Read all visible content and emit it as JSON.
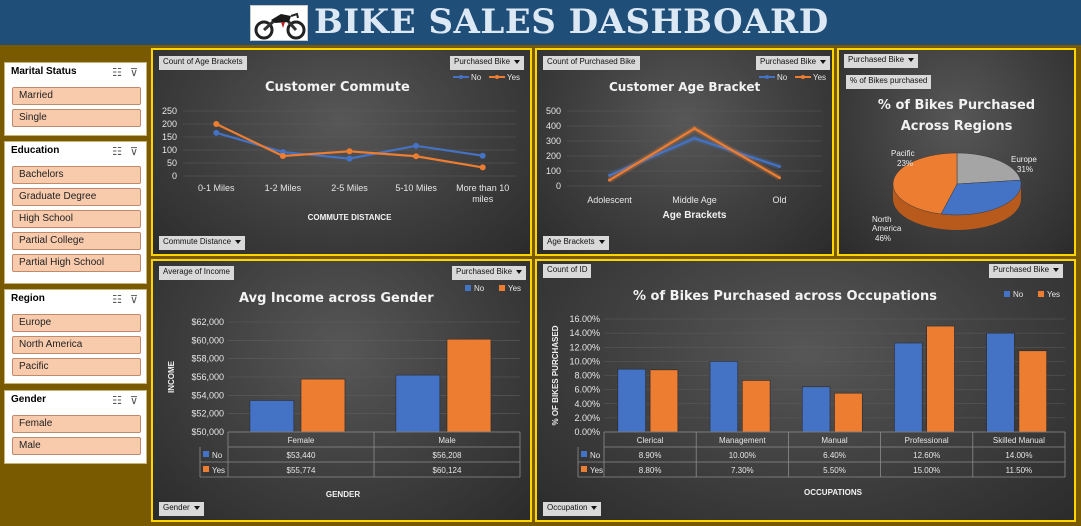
{
  "header": {
    "title": "BIKE SALES DASHBOARD"
  },
  "slicers": [
    {
      "title": "Marital Status",
      "items": [
        "Married",
        "Single"
      ]
    },
    {
      "title": "Education",
      "items": [
        "Bachelors",
        "Graduate Degree",
        "High School",
        "Partial College",
        "Partial High School"
      ]
    },
    {
      "title": "Region",
      "items": [
        "Europe",
        "North America",
        "Pacific"
      ]
    },
    {
      "title": "Gender",
      "items": [
        "Female",
        "Male"
      ]
    }
  ],
  "field_buttons": {
    "commute_value": "Count of Age Brackets",
    "commute_series": "Purchased Bike",
    "commute_axis": "Commute Distance",
    "age_value": "Count of Purchased Bike",
    "age_series": "Purchased Bike",
    "age_axis": "Age Brackets",
    "region_filter": "Purchased Bike",
    "region_value": "% of Bikes purchased",
    "income_value": "Average of Income",
    "income_series": "Purchased Bike",
    "income_axis": "Gender",
    "occ_value": "Count of ID",
    "occ_series": "Purchased Bike",
    "occ_axis": "Occupation"
  },
  "colors": {
    "no": "#4472c4",
    "yes": "#ed7d31",
    "pacific": "#a5a5a5",
    "panel_border": "#ffd500",
    "slicer_item": "#f8cbad"
  },
  "chart_data": [
    {
      "id": "commute",
      "type": "line",
      "title": "Customer Commute",
      "xlabel": "COMMUTE DISTANCE",
      "categories": [
        "0-1 Miles",
        "1-2 Miles",
        "2-5 Miles",
        "5-10 Miles",
        "More than 10 miles"
      ],
      "ylim": [
        0,
        250
      ],
      "yticks": [
        0,
        50,
        100,
        150,
        200,
        250
      ],
      "series": [
        {
          "name": "No",
          "values": [
            166,
            92,
            67,
            116,
            78
          ]
        },
        {
          "name": "Yes",
          "values": [
            200,
            77,
            95,
            76,
            33
          ]
        }
      ],
      "legend": "top-right"
    },
    {
      "id": "age",
      "type": "line",
      "title": "Customer Age Bracket",
      "xlabel": "Age Brackets",
      "categories": [
        "Adolescent",
        "Middle Age",
        "Old"
      ],
      "ylim": [
        0,
        500
      ],
      "yticks": [
        0,
        100,
        200,
        300,
        400,
        500
      ],
      "series": [
        {
          "name": "No",
          "values": [
            71,
            318,
            130
          ]
        },
        {
          "name": "Yes",
          "values": [
            39,
            383,
            55
          ]
        }
      ],
      "legend": "top-right"
    },
    {
      "id": "region",
      "type": "pie",
      "title": "% of Bikes Purchased Across Regions",
      "slices": [
        {
          "label": "Europe",
          "percent": "31%",
          "value": 31
        },
        {
          "label": "North America",
          "percent": "46%",
          "value": 46
        },
        {
          "label": "Pacific",
          "percent": "23%",
          "value": 23
        }
      ]
    },
    {
      "id": "income",
      "type": "bar",
      "title": "Avg Income across Gender",
      "xlabel": "GENDER",
      "ylabel": "INCOME",
      "categories": [
        "Female",
        "Male"
      ],
      "ylim": [
        50000,
        62000
      ],
      "yticks": [
        "$50,000",
        "$52,000",
        "$54,000",
        "$56,000",
        "$58,000",
        "$60,000",
        "$62,000"
      ],
      "series": [
        {
          "name": "No",
          "values": [
            53440,
            56208
          ],
          "labels": [
            "$53,440",
            "$56,208"
          ]
        },
        {
          "name": "Yes",
          "values": [
            55774,
            60124
          ],
          "labels": [
            "$55,774",
            "$60,124"
          ]
        }
      ],
      "legend": "top-right"
    },
    {
      "id": "occupation",
      "type": "bar",
      "title": "% of Bikes Purchased across Occupations",
      "xlabel": "OCCUPATIONS",
      "ylabel": "% OF BIKES PURCHASED",
      "categories": [
        "Clerical",
        "Management",
        "Manual",
        "Professional",
        "Skilled Manual"
      ],
      "ylim": [
        0,
        16
      ],
      "yticks": [
        "0.00%",
        "2.00%",
        "4.00%",
        "6.00%",
        "8.00%",
        "10.00%",
        "12.00%",
        "14.00%",
        "16.00%"
      ],
      "series": [
        {
          "name": "No",
          "values": [
            8.9,
            10.0,
            6.4,
            12.6,
            14.0
          ],
          "labels": [
            "8.90%",
            "10.00%",
            "6.40%",
            "12.60%",
            "14.00%"
          ]
        },
        {
          "name": "Yes",
          "values": [
            8.8,
            7.3,
            5.5,
            15.0,
            11.5
          ],
          "labels": [
            "8.80%",
            "7.30%",
            "5.50%",
            "15.00%",
            "11.50%"
          ]
        }
      ],
      "legend": "top-right"
    }
  ]
}
